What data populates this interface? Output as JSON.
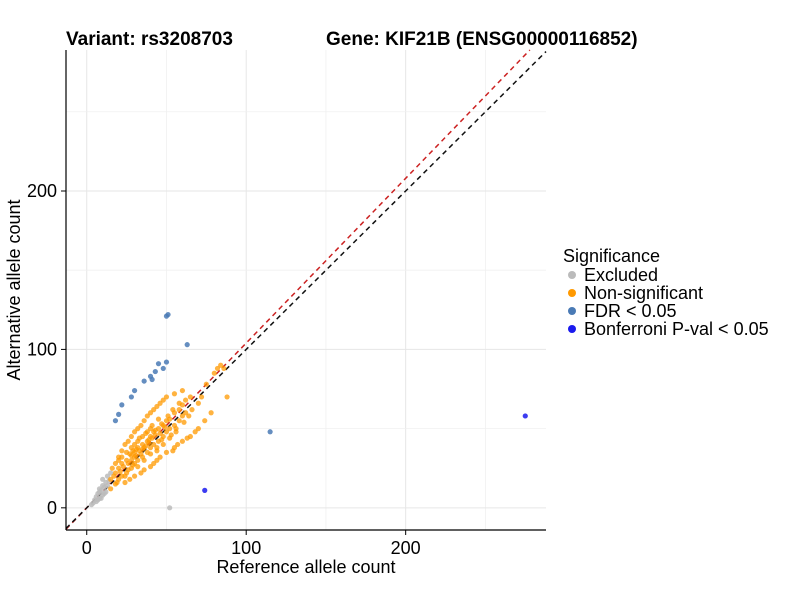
{
  "header": {
    "variant_title": "Variant: rs3208703",
    "gene_title": "Gene: KIF21B (ENSG00000116852)"
  },
  "chart_data": {
    "type": "scatter",
    "xlabel": "Reference allele count",
    "ylabel": "Alternative allele count",
    "xlim": [
      -13,
      288
    ],
    "ylim": [
      -14,
      289
    ],
    "x_ticks": [
      0,
      100,
      200
    ],
    "y_ticks": [
      0,
      100,
      200
    ],
    "x_tick_labels": [
      "0",
      "100",
      "200"
    ],
    "y_tick_labels": [
      "0",
      "100",
      "200"
    ],
    "grid": true,
    "reference_lines": [
      {
        "style": "dashed",
        "color": "#cc2222",
        "slope": 1.04,
        "intercept": 0
      },
      {
        "style": "dashed",
        "color": "#111111",
        "slope": 1.0,
        "intercept": 0
      }
    ],
    "legend": {
      "title": "Significance",
      "placement": "right",
      "entries": [
        {
          "key": "excluded",
          "label": "Excluded",
          "color": "#bbbbbb"
        },
        {
          "key": "nonsig",
          "label": "Non-significant",
          "color": "#ff9900"
        },
        {
          "key": "fdr",
          "label": "FDR < 0.05",
          "color": "#4a7ab5"
        },
        {
          "key": "bonf",
          "label": "Bonferroni P-val < 0.05",
          "color": "#1a1aee"
        }
      ]
    },
    "series": [
      {
        "key": "excluded",
        "points": [
          [
            6,
            4
          ],
          [
            8,
            6
          ],
          [
            10,
            8
          ],
          [
            5,
            5
          ],
          [
            7,
            9
          ],
          [
            9,
            11
          ],
          [
            11,
            13
          ],
          [
            12,
            16
          ],
          [
            13,
            20
          ],
          [
            4,
            3
          ],
          [
            8,
            12
          ],
          [
            10,
            14
          ],
          [
            6,
            7
          ],
          [
            12,
            10
          ],
          [
            9,
            6
          ],
          [
            11,
            9
          ],
          [
            14,
            17
          ],
          [
            7,
            5
          ],
          [
            3,
            2
          ],
          [
            8,
            10
          ],
          [
            15,
            22
          ],
          [
            10,
            18
          ],
          [
            13,
            14
          ],
          [
            52,
            0
          ]
        ]
      },
      {
        "key": "nonsig",
        "points": [
          [
            15,
            18
          ],
          [
            18,
            22
          ],
          [
            20,
            25
          ],
          [
            22,
            28
          ],
          [
            25,
            30
          ],
          [
            28,
            33
          ],
          [
            30,
            35
          ],
          [
            32,
            38
          ],
          [
            35,
            40
          ],
          [
            38,
            42
          ],
          [
            40,
            45
          ],
          [
            42,
            48
          ],
          [
            45,
            50
          ],
          [
            48,
            52
          ],
          [
            50,
            55
          ],
          [
            52,
            56
          ],
          [
            55,
            60
          ],
          [
            58,
            62
          ],
          [
            60,
            65
          ],
          [
            62,
            68
          ],
          [
            65,
            70
          ],
          [
            18,
            15
          ],
          [
            20,
            18
          ],
          [
            22,
            20
          ],
          [
            25,
            22
          ],
          [
            28,
            25
          ],
          [
            30,
            28
          ],
          [
            32,
            30
          ],
          [
            35,
            32
          ],
          [
            38,
            35
          ],
          [
            40,
            38
          ],
          [
            42,
            40
          ],
          [
            45,
            42
          ],
          [
            48,
            45
          ],
          [
            50,
            48
          ],
          [
            52,
            50
          ],
          [
            55,
            52
          ],
          [
            58,
            55
          ],
          [
            60,
            58
          ],
          [
            62,
            60
          ],
          [
            20,
            30
          ],
          [
            22,
            32
          ],
          [
            25,
            35
          ],
          [
            28,
            38
          ],
          [
            30,
            40
          ],
          [
            32,
            42
          ],
          [
            35,
            45
          ],
          [
            38,
            48
          ],
          [
            40,
            50
          ],
          [
            24,
            20
          ],
          [
            26,
            24
          ],
          [
            28,
            30
          ],
          [
            30,
            32
          ],
          [
            33,
            36
          ],
          [
            36,
            38
          ],
          [
            39,
            41
          ],
          [
            41,
            44
          ],
          [
            43,
            46
          ],
          [
            46,
            47
          ],
          [
            49,
            51
          ],
          [
            15,
            12
          ],
          [
            17,
            20
          ],
          [
            19,
            16
          ],
          [
            21,
            23
          ],
          [
            23,
            26
          ],
          [
            26,
            28
          ],
          [
            29,
            27
          ],
          [
            31,
            33
          ],
          [
            34,
            34
          ],
          [
            37,
            39
          ],
          [
            44,
            38
          ],
          [
            47,
            43
          ],
          [
            53,
            46
          ],
          [
            56,
            50
          ],
          [
            61,
            54
          ],
          [
            64,
            58
          ],
          [
            66,
            62
          ],
          [
            70,
            66
          ],
          [
            72,
            70
          ],
          [
            75,
            78
          ],
          [
            80,
            85
          ],
          [
            82,
            88
          ],
          [
            84,
            90
          ],
          [
            86,
            88
          ],
          [
            88,
            70
          ],
          [
            78,
            60
          ],
          [
            74,
            55
          ],
          [
            70,
            50
          ],
          [
            68,
            48
          ],
          [
            65,
            45
          ],
          [
            63,
            44
          ],
          [
            60,
            42
          ],
          [
            57,
            40
          ],
          [
            55,
            38
          ],
          [
            54,
            36
          ],
          [
            50,
            35
          ],
          [
            46,
            32
          ],
          [
            44,
            30
          ],
          [
            42,
            28
          ],
          [
            40,
            26
          ],
          [
            36,
            24
          ],
          [
            34,
            22
          ],
          [
            30,
            20
          ],
          [
            27,
            18
          ],
          [
            24,
            16
          ],
          [
            16,
            25
          ],
          [
            18,
            28
          ],
          [
            20,
            32
          ],
          [
            22,
            36
          ],
          [
            24,
            40
          ],
          [
            26,
            42
          ],
          [
            28,
            45
          ],
          [
            30,
            48
          ],
          [
            32,
            50
          ],
          [
            34,
            52
          ],
          [
            36,
            55
          ],
          [
            38,
            58
          ],
          [
            40,
            60
          ],
          [
            42,
            62
          ],
          [
            44,
            64
          ],
          [
            46,
            66
          ],
          [
            48,
            68
          ],
          [
            50,
            70
          ],
          [
            55,
            72
          ],
          [
            60,
            74
          ],
          [
            32,
            26
          ],
          [
            36,
            30
          ],
          [
            40,
            34
          ],
          [
            44,
            36
          ],
          [
            48,
            40
          ],
          [
            52,
            44
          ],
          [
            56,
            48
          ],
          [
            33,
            44
          ],
          [
            37,
            47
          ],
          [
            41,
            52
          ],
          [
            45,
            56
          ],
          [
            27,
            34
          ],
          [
            29,
            36
          ],
          [
            31,
            37
          ],
          [
            35,
            37
          ],
          [
            39,
            43
          ],
          [
            43,
            49
          ],
          [
            47,
            53
          ],
          [
            51,
            58
          ],
          [
            54,
            62
          ],
          [
            58,
            66
          ]
        ]
      },
      {
        "key": "fdr",
        "points": [
          [
            50,
            121
          ],
          [
            51,
            122
          ],
          [
            63,
            103
          ],
          [
            45,
            91
          ],
          [
            50,
            92
          ],
          [
            48,
            88
          ],
          [
            43,
            86
          ],
          [
            40,
            83
          ],
          [
            41,
            81
          ],
          [
            36,
            80
          ],
          [
            30,
            74
          ],
          [
            28,
            70
          ],
          [
            22,
            65
          ],
          [
            20,
            59
          ],
          [
            18,
            55
          ],
          [
            115,
            48
          ]
        ]
      },
      {
        "key": "bonf",
        "points": [
          [
            74,
            11
          ],
          [
            275,
            58
          ]
        ]
      }
    ]
  }
}
